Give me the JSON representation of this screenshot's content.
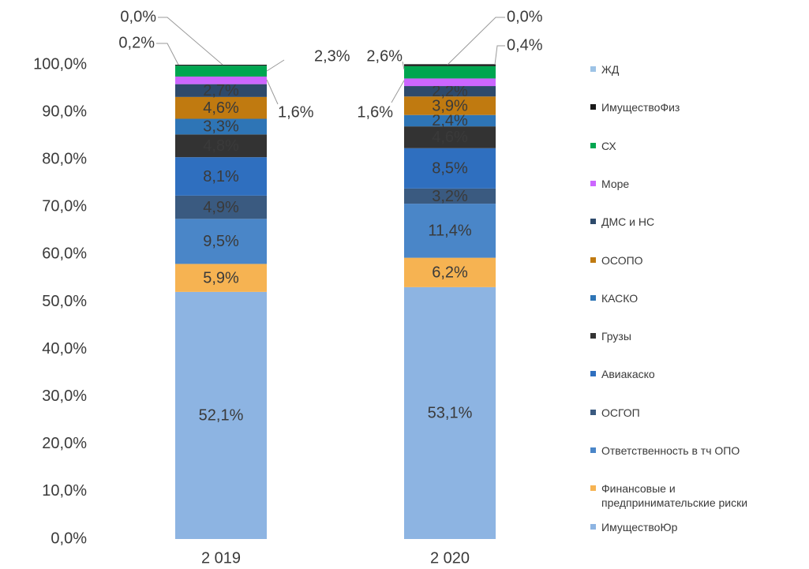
{
  "chart_data": {
    "type": "stacked_bar",
    "categories": [
      "2 019",
      "2 020"
    ],
    "ylim": [
      0,
      100
    ],
    "yticks": [
      {
        "value": 0,
        "label": "0,0%"
      },
      {
        "value": 10,
        "label": "10,0%"
      },
      {
        "value": 20,
        "label": "20,0%"
      },
      {
        "value": 30,
        "label": "30,0%"
      },
      {
        "value": 40,
        "label": "40,0%"
      },
      {
        "value": 50,
        "label": "50,0%"
      },
      {
        "value": 60,
        "label": "60,0%"
      },
      {
        "value": 70,
        "label": "70,0%"
      },
      {
        "value": 80,
        "label": "80,0%"
      },
      {
        "value": 90,
        "label": "90,0%"
      },
      {
        "value": 100,
        "label": "100,0%"
      }
    ],
    "legend": "right",
    "series": [
      {
        "name": "ИмуществоЮр",
        "color": "#8db4e2",
        "label_color": "#3a3a3a",
        "values": [
          52.1,
          53.1
        ],
        "value_labels": [
          "52,1%",
          "53,1%"
        ]
      },
      {
        "name": "Финансовые и предпринимательские риски",
        "color": "#f6b352",
        "label_color": "#3a3a3a",
        "values": [
          5.9,
          6.2
        ],
        "value_labels": [
          "5,9%",
          "6,2%"
        ]
      },
      {
        "name": "Ответственность в тч ОПО",
        "color": "#4a86c8",
        "label_color": "#ffff40",
        "values": [
          9.5,
          11.4
        ],
        "value_labels": [
          "9,5%",
          "11,4%"
        ]
      },
      {
        "name": "ОСГОП",
        "color": "#3a5a80",
        "label_color": "#ffff40",
        "values": [
          4.9,
          3.2
        ],
        "value_labels": [
          "4,9%",
          "3,2%"
        ]
      },
      {
        "name": "Авиакаско",
        "color": "#2f6fbf",
        "label_color": "#ffff40",
        "values": [
          8.1,
          8.5
        ],
        "value_labels": [
          "8,1%",
          "8,5%"
        ]
      },
      {
        "name": "Грузы",
        "color": "#333333",
        "label_color": "#ffff40",
        "values": [
          4.8,
          4.6
        ],
        "value_labels": [
          "4,8%",
          "4,6%"
        ]
      },
      {
        "name": "КАСКО",
        "color": "#2e75b6",
        "label_color": "#ffff40",
        "values": [
          3.3,
          2.4
        ],
        "value_labels": [
          "3,3%",
          "2,4%"
        ]
      },
      {
        "name": "ОСОПО",
        "color": "#c07a10",
        "label_color": "#ffff40",
        "values": [
          4.6,
          3.9
        ],
        "value_labels": [
          "4,6%",
          "3,9%"
        ]
      },
      {
        "name": "ДМС и НС",
        "color": "#2e4a6b",
        "label_color": "#ffff40",
        "values": [
          2.7,
          2.2
        ],
        "value_labels": [
          "2,7%",
          "2,2%"
        ]
      },
      {
        "name": "Море",
        "color": "#cc66ff",
        "label_color": "#3a3a3a",
        "label_position": "outside",
        "values": [
          1.6,
          1.6
        ],
        "value_labels": [
          "1,6%",
          "1,6%"
        ]
      },
      {
        "name": "СХ",
        "color": "#00a650",
        "label_color": "#3a3a3a",
        "label_position": "outside",
        "values": [
          2.3,
          2.6
        ],
        "value_labels": [
          "2,3%",
          "2,6%"
        ]
      },
      {
        "name": "ИмуществоФиз",
        "color": "#1a1a1a",
        "label_color": "#3a3a3a",
        "label_position": "outside",
        "values": [
          0.2,
          0.4
        ],
        "value_labels": [
          "0,2%",
          "0,4%"
        ]
      },
      {
        "name": "ЖД",
        "color": "#9dc3e6",
        "label_color": "#3a3a3a",
        "label_position": "outside",
        "values": [
          0.0,
          0.0
        ],
        "value_labels": [
          "0,0%",
          "0,0%"
        ]
      }
    ]
  }
}
